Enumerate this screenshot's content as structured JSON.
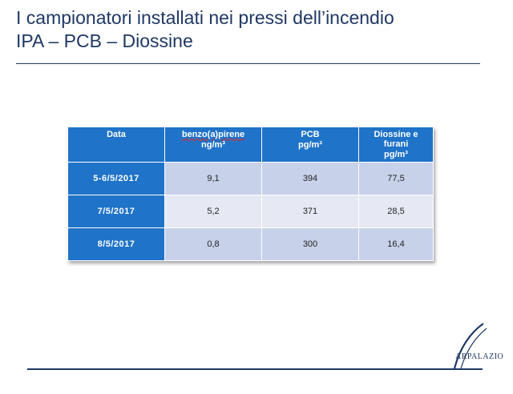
{
  "title": {
    "line1": "I campionatori installati nei pressi dell’incendio",
    "line2": "IPA – PCB – Diossine"
  },
  "table": {
    "headers": [
      {
        "label": "Data",
        "unit": ""
      },
      {
        "label": "benzo(a)pirene",
        "unit": "ng/m³"
      },
      {
        "label": "PCB",
        "unit": "pg/m³"
      },
      {
        "label": "Diossine e furani",
        "unit": "pg/m³"
      }
    ],
    "rows": [
      {
        "date": "5-6/5/2017",
        "benzo": "9,1",
        "pcb": "394",
        "diossine": "77,5"
      },
      {
        "date": "7/5/2017",
        "benzo": "5,2",
        "pcb": "371",
        "diossine": "28,5"
      },
      {
        "date": "8/5/2017",
        "benzo": "0,8",
        "pcb": "300",
        "diossine": "16,4"
      }
    ]
  },
  "logo": {
    "text": "ARPALAZIO",
    "icon": "arpa-lazio-logo-icon"
  },
  "colors": {
    "title": "#1f3864",
    "header_bg": "#1f73c8",
    "row_odd": "#c8d1ea",
    "row_even": "#e6e9f4"
  }
}
